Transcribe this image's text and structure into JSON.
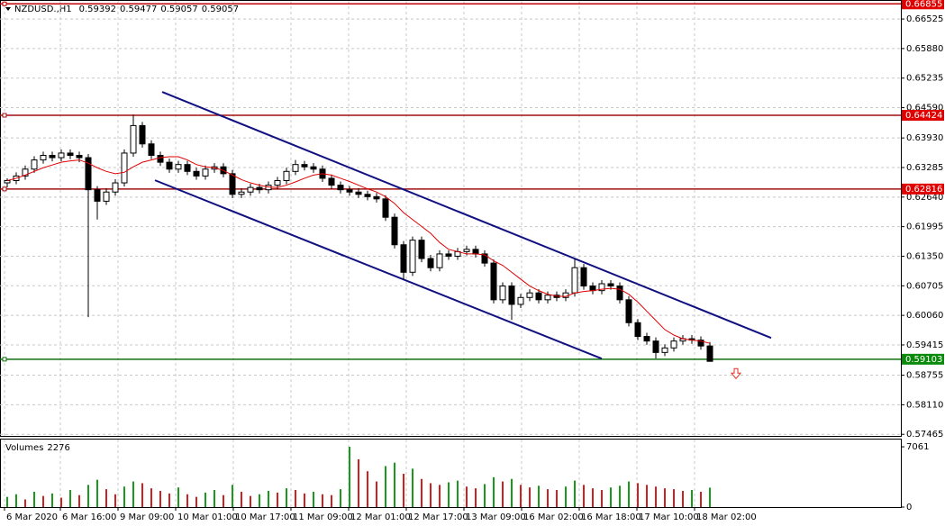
{
  "header": {
    "symbol": "NZDUSD.,H1",
    "ohlc": [
      0.59392,
      0.59477,
      0.59057,
      0.59057
    ]
  },
  "chart_data": {
    "type": "candlestick",
    "grid": true,
    "ylim": [
      0.5743,
      0.6688
    ],
    "yticks": [
      0.66525,
      {
        "value": 0.6588,
        "label": "0.65880"
      },
      0.65235,
      {
        "value": 0.6459,
        "label": "0.64590"
      },
      {
        "value": 0.6393,
        "label": "0.63930"
      },
      0.63285,
      {
        "value": 0.6264,
        "label": "0.62640"
      },
      0.61995,
      {
        "value": 0.6135,
        "label": "0.61350"
      },
      0.60705,
      {
        "value": 0.6006,
        "label": "0.60060"
      },
      0.59415,
      0.58755,
      {
        "value": 0.5811,
        "label": "0.58110"
      },
      0.57465
    ],
    "xlim": [
      -0.8,
      99.2
    ],
    "xticks": [
      {
        "value": -0.3,
        "label": "6 Mar 2020"
      },
      {
        "value": 5.9,
        "label": "6 Mar 16:00"
      },
      {
        "value": 12.3,
        "label": "9 Mar 09:00"
      },
      {
        "value": 18.7,
        "label": "10 Mar 01:00"
      },
      {
        "value": 25.1,
        "label": "10 Mar 17:00"
      },
      {
        "value": 31.5,
        "label": "11 Mar 09:00"
      },
      {
        "value": 37.9,
        "label": "12 Mar 01:00"
      },
      {
        "value": 44.3,
        "label": "12 Mar 17:00"
      },
      {
        "value": 50.7,
        "label": "13 Mar 09:00"
      },
      {
        "value": 57.1,
        "label": "16 Mar 02:00"
      },
      {
        "value": 63.5,
        "label": "16 Mar 18:00"
      },
      {
        "value": 69.9,
        "label": "17 Mar 10:00"
      },
      {
        "value": 76.3,
        "label": "18 Mar 02:00"
      }
    ],
    "open": [
      0.6295,
      0.63,
      0.631,
      0.6325,
      0.6345,
      0.6355,
      0.635,
      0.636,
      0.6355,
      0.635,
      0.628,
      0.6255,
      0.6275,
      0.6295,
      0.636,
      0.642,
      0.638,
      0.6355,
      0.634,
      0.6325,
      0.6335,
      0.632,
      0.631,
      0.6325,
      0.633,
      0.6315,
      0.627,
      0.6275,
      0.6285,
      0.628,
      0.629,
      0.63,
      0.632,
      0.6335,
      0.633,
      0.6325,
      0.6305,
      0.629,
      0.628,
      0.6275,
      0.627,
      0.6265,
      0.626,
      0.622,
      0.616,
      0.61,
      0.617,
      0.613,
      0.611,
      0.614,
      0.6135,
      0.6145,
      0.615,
      0.614,
      0.612,
      0.604,
      0.607,
      0.603,
      0.6045,
      0.6055,
      0.604,
      0.605,
      0.6045,
      0.6055,
      0.611,
      0.607,
      0.606,
      0.6075,
      0.607,
      0.604,
      0.599,
      0.596,
      0.595,
      0.5925,
      0.5935,
      0.595,
      0.5955,
      0.5952,
      0.59392
    ],
    "high": [
      0.6305,
      0.6318,
      0.6333,
      0.6353,
      0.6363,
      0.6363,
      0.6368,
      0.6368,
      0.6363,
      0.6358,
      0.6288,
      0.6283,
      0.6303,
      0.6368,
      0.6444,
      0.6428,
      0.6388,
      0.6363,
      0.6348,
      0.6343,
      0.6343,
      0.6328,
      0.6333,
      0.6338,
      0.6338,
      0.6323,
      0.6283,
      0.6293,
      0.6293,
      0.6298,
      0.6308,
      0.6328,
      0.6345,
      0.6343,
      0.6338,
      0.6333,
      0.6313,
      0.6298,
      0.6288,
      0.6283,
      0.6278,
      0.6273,
      0.6268,
      0.6228,
      0.6168,
      0.6178,
      0.6178,
      0.6138,
      0.6148,
      0.6148,
      0.6153,
      0.6158,
      0.6158,
      0.6148,
      0.6128,
      0.6078,
      0.6078,
      0.6053,
      0.6063,
      0.6063,
      0.6058,
      0.6058,
      0.6063,
      0.6128,
      0.6118,
      0.6078,
      0.6083,
      0.6083,
      0.6078,
      0.6048,
      0.5998,
      0.5968,
      0.5958,
      0.5943,
      0.5958,
      0.5963,
      0.5963,
      0.596,
      0.59477
    ],
    "low": [
      0.6285,
      0.6292,
      0.6302,
      0.6317,
      0.6337,
      0.6342,
      0.6342,
      0.6347,
      0.634,
      0.6002,
      0.6215,
      0.6247,
      0.6267,
      0.6287,
      0.6352,
      0.6372,
      0.6347,
      0.6332,
      0.6317,
      0.6317,
      0.6312,
      0.6302,
      0.6302,
      0.6317,
      0.6307,
      0.6262,
      0.6262,
      0.6267,
      0.6272,
      0.6272,
      0.6282,
      0.6292,
      0.6312,
      0.6322,
      0.6317,
      0.6297,
      0.6282,
      0.6272,
      0.6267,
      0.6262,
      0.6257,
      0.6252,
      0.6212,
      0.6152,
      0.6084,
      0.6092,
      0.6122,
      0.6102,
      0.6102,
      0.6127,
      0.6127,
      0.6137,
      0.6132,
      0.6112,
      0.6032,
      0.6032,
      0.5996,
      0.6022,
      0.6037,
      0.6032,
      0.6032,
      0.6037,
      0.6037,
      0.6047,
      0.6062,
      0.6052,
      0.6052,
      0.6062,
      0.6032,
      0.5982,
      0.5952,
      0.5942,
      0.5912,
      0.5917,
      0.5927,
      0.5942,
      0.5944,
      0.5931,
      0.59057
    ],
    "close": [
      0.63,
      0.631,
      0.6325,
      0.6345,
      0.6355,
      0.635,
      0.636,
      0.6355,
      0.635,
      0.628,
      0.6255,
      0.6275,
      0.6295,
      0.636,
      0.642,
      0.638,
      0.6355,
      0.634,
      0.6325,
      0.6335,
      0.632,
      0.631,
      0.6325,
      0.633,
      0.6315,
      0.627,
      0.6275,
      0.6285,
      0.628,
      0.629,
      0.63,
      0.632,
      0.6335,
      0.633,
      0.6325,
      0.6305,
      0.629,
      0.628,
      0.6275,
      0.627,
      0.6265,
      0.626,
      0.622,
      0.616,
      0.61,
      0.617,
      0.613,
      0.611,
      0.614,
      0.6135,
      0.6145,
      0.615,
      0.614,
      0.612,
      0.604,
      0.607,
      0.603,
      0.6045,
      0.6055,
      0.604,
      0.605,
      0.6045,
      0.6055,
      0.611,
      0.607,
      0.606,
      0.6075,
      0.607,
      0.604,
      0.599,
      0.596,
      0.595,
      0.5925,
      0.5935,
      0.595,
      0.5955,
      0.5952,
      0.59392,
      0.59057
    ],
    "ma": {
      "color": "#e00000",
      "values": [
        0.63,
        0.6305,
        0.6312,
        0.632,
        0.6328,
        0.6334,
        0.634,
        0.6343,
        0.6345,
        0.6338,
        0.6328,
        0.632,
        0.6315,
        0.6318,
        0.633,
        0.634,
        0.6345,
        0.635,
        0.6352,
        0.6352,
        0.6345,
        0.6335,
        0.633,
        0.6328,
        0.6322,
        0.6312,
        0.6302,
        0.6295,
        0.629,
        0.6286,
        0.6285,
        0.629,
        0.6297,
        0.6305,
        0.6312,
        0.6315,
        0.6312,
        0.6305,
        0.6298,
        0.629,
        0.6282,
        0.6275,
        0.6265,
        0.625,
        0.623,
        0.6215,
        0.62,
        0.6185,
        0.6165,
        0.615,
        0.6145,
        0.614,
        0.614,
        0.6138,
        0.6125,
        0.6115,
        0.61,
        0.6085,
        0.607,
        0.606,
        0.6052,
        0.6048,
        0.6047,
        0.6055,
        0.6058,
        0.606,
        0.6063,
        0.6065,
        0.6063,
        0.6052,
        0.6035,
        0.6015,
        0.5995,
        0.5975,
        0.5963,
        0.5955,
        0.5952,
        0.595,
        0.5945
      ]
    },
    "levels": [
      {
        "value": 0.66855,
        "color": "#c00000",
        "label_color": "#e00000"
      },
      {
        "value": 0.64424,
        "color": "#a01010",
        "label_color": "#e00000"
      },
      {
        "value": 0.62816,
        "color": "#a01010",
        "label_color": "#e00000"
      },
      {
        "value": 0.59103,
        "color": "#107010",
        "label_color": "#0a8a0a"
      }
    ],
    "channel_lines": [
      {
        "color": "#101080",
        "x": [
          17.2,
          84.8
        ],
        "y": [
          0.64933,
          0.59567
        ]
      },
      {
        "color": "#101080",
        "x": [
          16.4,
          66.0
        ],
        "y": [
          0.63007,
          0.59115
        ]
      }
    ],
    "signal": {
      "color": "#e03020",
      "x": 80.9,
      "y": 0.5878
    },
    "volume": {
      "label": "Volumes",
      "last": 2276,
      "ylim": [
        0,
        7700
      ],
      "yticks": [
        7061,
        0
      ],
      "values": [
        1200,
        1500,
        900,
        1800,
        1300,
        1600,
        1100,
        2000,
        1400,
        2600,
        3200,
        2100,
        1500,
        2400,
        3000,
        2800,
        2200,
        1900,
        1600,
        2300,
        1500,
        1200,
        1700,
        2000,
        1400,
        2600,
        1800,
        1300,
        1500,
        1900,
        1700,
        2200,
        2000,
        1600,
        1800,
        1500,
        1400,
        2100,
        7061,
        5600,
        4200,
        3000,
        4800,
        5200,
        3900,
        4500,
        3300,
        2800,
        2600,
        2900,
        3100,
        2400,
        2200,
        2700,
        3500,
        3000,
        3300,
        2600,
        2300,
        2500,
        2100,
        2000,
        2400,
        3100,
        2600,
        2200,
        2000,
        2300,
        2500,
        3000,
        2800,
        2600,
        2400,
        2200,
        2100,
        1900,
        2000,
        1800,
        2276
      ]
    }
  }
}
